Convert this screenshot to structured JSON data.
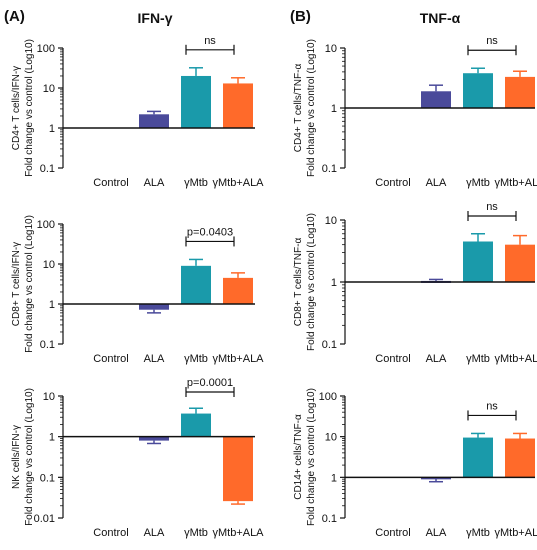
{
  "panels": {
    "left_letter": "(A)",
    "left_title": "IFN-γ",
    "right_letter": "(B)",
    "right_title": "TNF-α"
  },
  "chart_data": [
    {
      "type": "bar",
      "title": "",
      "ylabel": [
        "CD4+ T cells/IFN-γ",
        "Fold change vs control (Log10)"
      ],
      "yscale": "log",
      "ylim": [
        0.1,
        100
      ],
      "yticks": [
        0.1,
        1,
        10,
        100
      ],
      "ytick_labels": [
        "0.1",
        "1",
        "10",
        "100"
      ],
      "categories": [
        "Control",
        "ALA",
        "γMtb",
        "γMtb+ALA"
      ],
      "values": [
        null,
        2.2,
        20,
        13
      ],
      "errors": [
        null,
        2.6,
        32,
        18
      ],
      "colors": [
        "#ffffff",
        "#4a4a9a",
        "#1a9aaa",
        "#ff6a2a"
      ],
      "bracket": {
        "from": 2,
        "to": 3,
        "label": "ns"
      },
      "grid": false
    },
    {
      "type": "bar",
      "title": "",
      "ylabel": [
        "CD4+ T cells/TNF-α",
        "Fold change vs control (Log10)"
      ],
      "yscale": "log",
      "ylim": [
        0.1,
        10
      ],
      "yticks": [
        0.1,
        1,
        10
      ],
      "ytick_labels": [
        "0.1",
        "1",
        "10"
      ],
      "categories": [
        "Control",
        "ALA",
        "γMtb",
        "γMtb+ALA"
      ],
      "values": [
        null,
        1.9,
        3.8,
        3.3
      ],
      "errors": [
        null,
        2.4,
        4.6,
        4.1
      ],
      "colors": [
        "#ffffff",
        "#4a4a9a",
        "#1a9aaa",
        "#ff6a2a"
      ],
      "bracket": {
        "from": 2,
        "to": 3,
        "label": "ns"
      },
      "grid": false
    },
    {
      "type": "bar",
      "title": "",
      "ylabel": [
        "CD8+ T cells/IFN-γ",
        "Fold change vs control (Log10)"
      ],
      "yscale": "log",
      "ylim": [
        0.1,
        100
      ],
      "yticks": [
        0.1,
        1,
        10,
        100
      ],
      "ytick_labels": [
        "0.1",
        "1",
        "10",
        "100"
      ],
      "categories": [
        "Control",
        "ALA",
        "γMtb",
        "γMtb+ALA"
      ],
      "values": [
        null,
        0.72,
        9,
        4.5
      ],
      "errors": [
        null,
        0.6,
        13,
        6
      ],
      "colors": [
        "#ffffff",
        "#4a4a9a",
        "#1a9aaa",
        "#ff6a2a"
      ],
      "bracket": {
        "from": 2,
        "to": 3,
        "label": "p=0.0403"
      },
      "grid": false
    },
    {
      "type": "bar",
      "title": "",
      "ylabel": [
        "CD8+ T cells/TNF-α",
        "Fold change vs control (Log10)"
      ],
      "yscale": "log",
      "ylim": [
        0.1,
        10
      ],
      "yticks": [
        0.1,
        1,
        10
      ],
      "ytick_labels": [
        "0.1",
        "1",
        "10"
      ],
      "categories": [
        "Control",
        "ALA",
        "γMtb",
        "γMtb+ALA"
      ],
      "values": [
        null,
        1.04,
        4.5,
        4.0
      ],
      "errors": [
        null,
        1.1,
        6.0,
        5.6
      ],
      "colors": [
        "#ffffff",
        "#4a4a9a",
        "#1a9aaa",
        "#ff6a2a"
      ],
      "bracket": {
        "from": 2,
        "to": 3,
        "label": "ns"
      },
      "grid": false
    },
    {
      "type": "bar",
      "title": "",
      "ylabel": [
        "NK cells/IFN-γ",
        "Fold change vs control (Log10)"
      ],
      "yscale": "log",
      "ylim": [
        0.01,
        10
      ],
      "yticks": [
        0.01,
        0.1,
        1,
        10
      ],
      "ytick_labels": [
        "0.01",
        "0.1",
        "1",
        "10"
      ],
      "categories": [
        "Control",
        "ALA",
        "γMtb",
        "γMtb+ALA"
      ],
      "values": [
        null,
        0.8,
        3.7,
        0.026
      ],
      "errors": [
        null,
        0.68,
        5,
        0.022
      ],
      "colors": [
        "#ffffff",
        "#4a4a9a",
        "#1a9aaa",
        "#ff6a2a"
      ],
      "bracket": {
        "from": 2,
        "to": 3,
        "label": "p=0.0001"
      },
      "grid": false
    },
    {
      "type": "bar",
      "title": "",
      "ylabel": [
        "CD14+ cells/TNF-α",
        "Fold change vs control (Log10)"
      ],
      "yscale": "log",
      "ylim": [
        0.1,
        100
      ],
      "yticks": [
        0.1,
        1,
        10,
        100
      ],
      "ytick_labels": [
        "0.1",
        "1",
        "10",
        "100"
      ],
      "categories": [
        "Control",
        "ALA",
        "γMtb",
        "γMtb+ALA"
      ],
      "values": [
        null,
        0.92,
        9.5,
        9
      ],
      "errors": [
        null,
        0.78,
        12,
        12
      ],
      "colors": [
        "#ffffff",
        "#4a4a9a",
        "#1a9aaa",
        "#ff6a2a"
      ],
      "bracket": {
        "from": 2,
        "to": 3,
        "label": "ns"
      },
      "grid": false
    }
  ]
}
